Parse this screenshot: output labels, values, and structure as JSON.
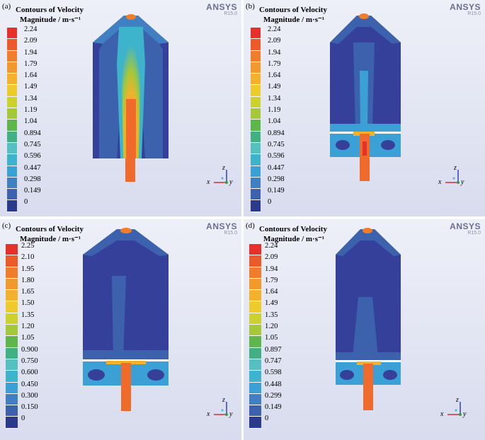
{
  "panels": [
    {
      "label": "(a)",
      "title_line1": "Contours of Velocity",
      "title_line2": "Magnitude / m·s⁻¹",
      "brand": "ANSYS",
      "version": "R15.0",
      "ticks": [
        "2.24",
        "2.09",
        "1.94",
        "1.79",
        "1.64",
        "1.49",
        "1.34",
        "1.19",
        "1.04",
        "0.894",
        "0.745",
        "0.596",
        "0.447",
        "0.298",
        "0.149",
        "0"
      ],
      "axes": {
        "x": "x",
        "y": "y",
        "z": "z"
      }
    },
    {
      "label": "(b)",
      "title_line1": "Contours of Velocity",
      "title_line2": "Magnitude / m·s⁻¹",
      "brand": "ANSYS",
      "version": "R15.0",
      "ticks": [
        "2.24",
        "2.09",
        "1.94",
        "1.79",
        "1.64",
        "1.49",
        "1.34",
        "1.19",
        "1.04",
        "0.894",
        "0.745",
        "0.596",
        "0.447",
        "0.298",
        "0.149",
        "0"
      ],
      "axes": {
        "x": "x",
        "y": "y",
        "z": "z"
      }
    },
    {
      "label": "(c)",
      "title_line1": "Contours of Velocity",
      "title_line2": "Magnitude / m·s⁻¹",
      "brand": "ANSYS",
      "version": "R15.0",
      "ticks": [
        "2.25",
        "2.10",
        "1.95",
        "1.80",
        "1.65",
        "1.50",
        "1.35",
        "1.20",
        "1.05",
        "0.900",
        "0.750",
        "0.600",
        "0.450",
        "0.300",
        "0.150",
        "0"
      ],
      "axes": {
        "x": "x",
        "y": "y",
        "z": "z"
      }
    },
    {
      "label": "(d)",
      "title_line1": "Contours of Velocity",
      "title_line2": "Magnitude / m·s⁻¹",
      "brand": "ANSYS",
      "version": "R15.0",
      "ticks": [
        "2.24",
        "2.09",
        "1.94",
        "1.79",
        "1.64",
        "1.49",
        "1.35",
        "1.20",
        "1.05",
        "0.897",
        "0.747",
        "0.598",
        "0.448",
        "0.299",
        "0.149",
        "0"
      ],
      "axes": {
        "x": "x",
        "y": "y",
        "z": "z"
      }
    }
  ],
  "colors": {
    "scale": [
      "#e8302a",
      "#ec5a2a",
      "#ef7d2b",
      "#f19a2b",
      "#f3b12c",
      "#eccb2b",
      "#cdd12e",
      "#a5c83a",
      "#5fb64c",
      "#43b084",
      "#56c0c0",
      "#3db3cc",
      "#3aa0d6",
      "#3f7fc2",
      "#3d62ad",
      "#2c3a8c"
    ],
    "background": "#dfe2f0",
    "low": "#34409a",
    "jet_core": "#f06a2c"
  }
}
